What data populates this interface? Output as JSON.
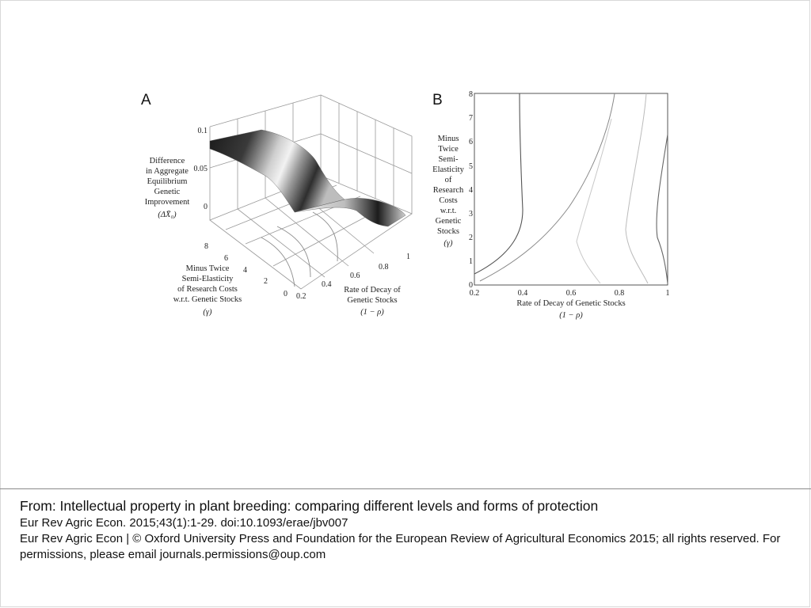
{
  "figure": {
    "panel_a": {
      "letter": "A",
      "z_axis_label_lines": [
        "Difference",
        "in Aggregate",
        "Equilibrium",
        "Genetic",
        "Improvement"
      ],
      "z_axis_symbol": "(ΔX̄₀)",
      "z_ticks": [
        "0.1",
        "0.05",
        "0"
      ],
      "gamma_axis_label_lines": [
        "Minus Twice",
        "Semi-Elasticity",
        "of Research Costs",
        "w.r.t. Genetic Stocks"
      ],
      "gamma_axis_symbol": "(γ)",
      "gamma_ticks": [
        "8",
        "6",
        "4",
        "2",
        "0"
      ],
      "decay_axis_label_lines": [
        "Rate of Decay of",
        "Genetic Stocks"
      ],
      "decay_axis_symbol": "(1 − ρ)",
      "decay_ticks": [
        "0.2",
        "0.4",
        "0.6",
        "0.8",
        "1"
      ]
    },
    "panel_b": {
      "letter": "B",
      "y_axis_label_lines": [
        "Minus",
        "Twice",
        "Semi-",
        "Elasticity",
        "of",
        "Research",
        "Costs",
        "w.r.t.",
        "Genetic",
        "Stocks"
      ],
      "y_axis_symbol": "(γ)",
      "y_ticks": [
        "8",
        "7",
        "6",
        "5",
        "4",
        "3",
        "2",
        "1",
        "0"
      ],
      "x_ticks": [
        "0.2",
        "0.4",
        "0.6",
        "0.8",
        "1"
      ],
      "x_axis_label": "Rate of Decay of Genetic Stocks",
      "x_axis_symbol": "(1 − ρ)"
    }
  },
  "caption": {
    "title": "From: Intellectual property in plant breeding: comparing different levels and forms of protection",
    "citation": "Eur Rev Agric Econ. 2015;43(1):1-29. doi:10.1093/erae/jbv007",
    "copyright": "Eur Rev Agric Econ | © Oxford University Press and Foundation for the European Review of Agricultural Economics 2015; all rights reserved. For permissions, please email journals.permissions@oup.com"
  }
}
